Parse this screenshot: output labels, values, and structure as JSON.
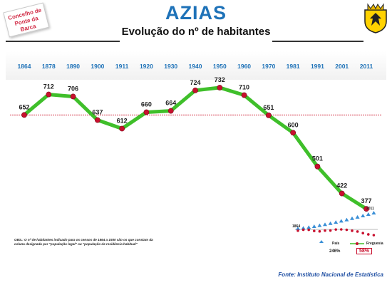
{
  "header": {
    "badge_line1": "Concelho de",
    "badge_line2": "Ponte da Barca",
    "title": "AZIAS",
    "subtitle": "Evolução do nº de habitantes"
  },
  "colors": {
    "title": "#1e72b8",
    "year_labels": "#1e72b8",
    "line": "#3fbf2a",
    "markers": "#c8102e",
    "reference_line": "#d4374a",
    "pais": "#3a8fd6"
  },
  "chart_data": {
    "type": "line",
    "x": [
      "1864",
      "1878",
      "1890",
      "1900",
      "1911",
      "1920",
      "1930",
      "1940",
      "1950",
      "1960",
      "1970",
      "1981",
      "1991",
      "2001",
      "2011"
    ],
    "series": [
      {
        "values": [
          652,
          712,
          706,
          637,
          612,
          660,
          664,
          724,
          732,
          710,
          651,
          600,
          501,
          422,
          377
        ]
      }
    ],
    "reference_line": 652,
    "ylim": [
      300,
      780
    ],
    "grid": false
  },
  "inset": {
    "label_start": "1864",
    "label_end": "2011",
    "legend_pais": "País",
    "legend_freguesia": "Freguesia",
    "pct_pais": "246%",
    "pct_freguesia": "58%"
  },
  "notes": {
    "obs": "OBS.: O nº de habitantes indicado para os censos de 1864 a 1930 são os que constam da coluna designada por \"população legal\" ou \"população de residência habitual\"",
    "source": "Fonte: Instituto Nacional de Estatística"
  }
}
